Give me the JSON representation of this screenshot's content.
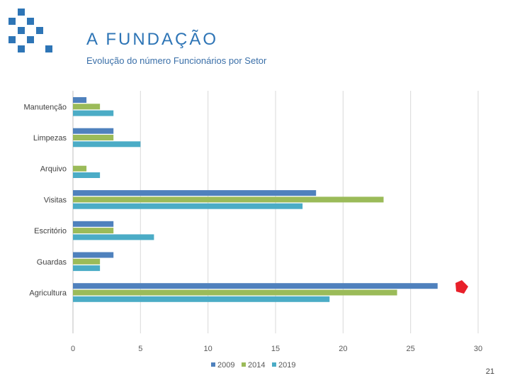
{
  "header": {
    "title": "A FUNDAÇÃO",
    "subtitle": "Evolução do número Funcionários por Setor"
  },
  "page_number": "21",
  "colors": {
    "logo": "#2e75b6",
    "title": "#2e75b6",
    "series_2009": "#4f81bd",
    "series_2014": "#9bbb59",
    "series_2019": "#4bacc6",
    "gridline": "#d9d9d9",
    "marker": "#e8202a"
  },
  "icons": {
    "logo": "logo-squares-icon",
    "marker": "red-shape-icon"
  },
  "chart_data": {
    "type": "bar",
    "orientation": "horizontal",
    "title": "Evolução do número Funcionários por Setor",
    "categories": [
      "Manutenção",
      "Limpezas",
      "Arquivo",
      "Visitas",
      "Escritório",
      "Guardas",
      "Agricultura"
    ],
    "series": [
      {
        "name": "2009",
        "values": [
          1,
          3,
          0,
          18,
          3,
          3,
          27
        ]
      },
      {
        "name": "2014",
        "values": [
          2,
          3,
          1,
          23,
          3,
          2,
          24
        ]
      },
      {
        "name": "2019",
        "values": [
          3,
          5,
          2,
          17,
          6,
          2,
          19
        ]
      }
    ],
    "xlim": [
      0,
      30
    ],
    "xticks": [
      0,
      5,
      10,
      15,
      20,
      25,
      30
    ],
    "grid": true,
    "legend": "bottom"
  }
}
